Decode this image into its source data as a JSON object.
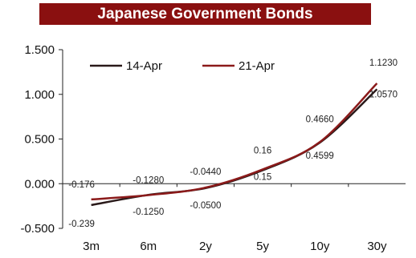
{
  "chart_data": {
    "type": "line",
    "title": "Japanese Government Bonds",
    "categories": [
      "3m",
      "6m",
      "2y",
      "5y",
      "10y",
      "30y"
    ],
    "ylim": [
      -0.5,
      1.5
    ],
    "yticks": [
      "1.500",
      "1.000",
      "0.500",
      "0.000",
      "-0.500"
    ],
    "ytick_values": [
      1.5,
      1.0,
      0.5,
      0.0,
      -0.5
    ],
    "grid": false,
    "legend_position": "top-left",
    "series": [
      {
        "name": "14-Apr",
        "color": "#2a1a1a",
        "values": [
          -0.239,
          -0.125,
          -0.05,
          0.15,
          0.4599,
          1.057
        ],
        "labels": [
          "-0.239",
          "-0.1250",
          "-0.0500",
          "0.15",
          "0.4599",
          "1.0570"
        ]
      },
      {
        "name": "21-Apr",
        "color": "#8b1a1a",
        "values": [
          -0.176,
          -0.128,
          -0.044,
          0.16,
          0.466,
          1.123
        ],
        "labels": [
          "-0.176",
          "-0.1280",
          "-0.0440",
          "0.16",
          "0.4660",
          "1.1230"
        ]
      }
    ]
  }
}
